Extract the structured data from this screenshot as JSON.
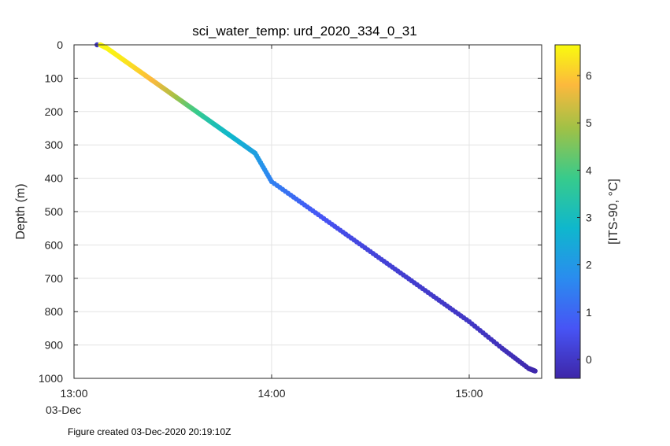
{
  "footer": "Figure created 03-Dec-2020 20:19:10Z",
  "chart_data": {
    "type": "scatter",
    "title": "sci_water_temp: urd_2020_334_0_31",
    "ylabel": "Depth (m)",
    "xlabel": "",
    "x_axis": {
      "type": "time",
      "range": [
        "13:00",
        "15:22"
      ],
      "tick_labels": [
        "13:00",
        "14:00",
        "15:00"
      ],
      "date_label": "03-Dec"
    },
    "y_axis": {
      "reversed": true,
      "ylim": [
        0,
        1000
      ],
      "ticks": [
        0,
        100,
        200,
        300,
        400,
        500,
        600,
        700,
        800,
        900,
        1000
      ]
    },
    "grid": true,
    "colorbar": {
      "label": "[ITS-90, °C]",
      "range": [
        -0.4,
        6.65
      ],
      "ticks": [
        0,
        1,
        2,
        3,
        4,
        5,
        6
      ],
      "colormap": "parula"
    },
    "points_time_depth_temp": [
      [
        "13:07",
        0,
        0
      ],
      [
        "13:08",
        0,
        6.6
      ],
      [
        "13:10",
        10,
        6.6
      ],
      [
        "13:15",
        45,
        6.4
      ],
      [
        "13:20",
        80,
        6.1
      ],
      [
        "13:25",
        115,
        5.7
      ],
      [
        "13:30",
        150,
        5.1
      ],
      [
        "13:35",
        185,
        4.2
      ],
      [
        "13:40",
        220,
        3.5
      ],
      [
        "13:45",
        255,
        3.0
      ],
      [
        "13:50",
        290,
        2.6
      ],
      [
        "13:55",
        325,
        2.2
      ],
      [
        "14:00",
        410,
        1.5
      ],
      [
        "14:10",
        480,
        0.9
      ],
      [
        "14:20",
        550,
        0.5
      ],
      [
        "14:30",
        620,
        0.3
      ],
      [
        "14:40",
        690,
        0.15
      ],
      [
        "14:50",
        760,
        0.05
      ],
      [
        "15:00",
        830,
        0
      ],
      [
        "15:10",
        910,
        -0.15
      ],
      [
        "15:18",
        970,
        -0.3
      ],
      [
        "15:20",
        978,
        -0.35
      ]
    ]
  }
}
